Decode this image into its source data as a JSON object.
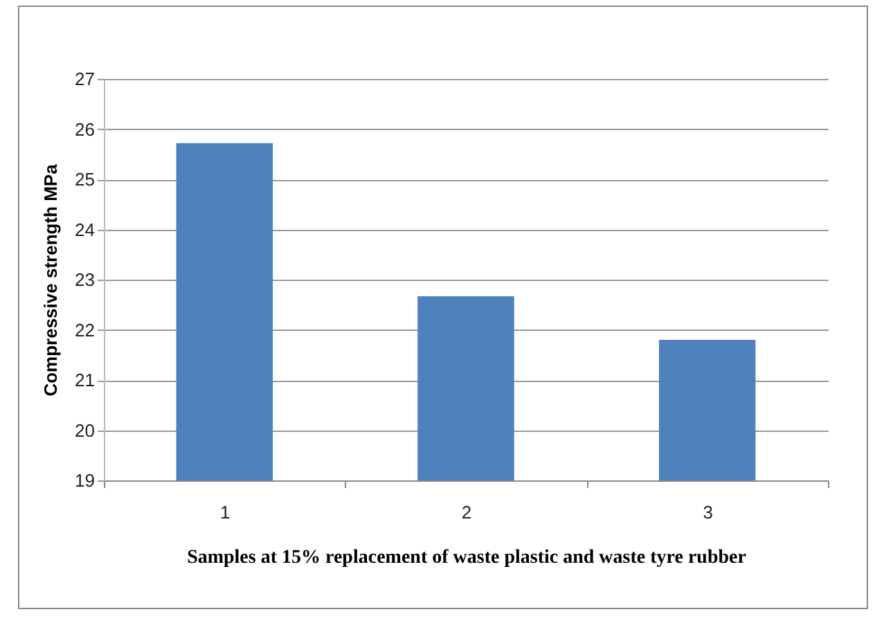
{
  "chart_data": {
    "type": "bar",
    "xlabel": "Samples at 15% replacement of waste plastic and waste tyre rubber",
    "ylabel": "Compressive strength MPa",
    "categories": [
      "1",
      "2",
      "3"
    ],
    "values": [
      25.72,
      22.67,
      21.8
    ],
    "color": "#4f81bd",
    "ylim": [
      19,
      27
    ],
    "yticks": [
      19,
      20,
      21,
      22,
      23,
      24,
      25,
      26,
      27
    ],
    "grid": "y"
  }
}
